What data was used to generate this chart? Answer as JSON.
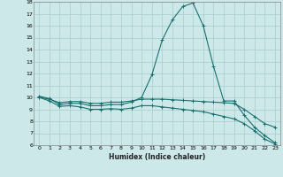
{
  "xlabel": "Humidex (Indice chaleur)",
  "bg_color": "#cce8e8",
  "grid_color": "#a8cccc",
  "line_color": "#1a7070",
  "xlim": [
    -0.5,
    23.5
  ],
  "ylim": [
    6,
    18
  ],
  "yticks": [
    6,
    7,
    8,
    9,
    10,
    11,
    12,
    13,
    14,
    15,
    16,
    17,
    18
  ],
  "xticks": [
    0,
    1,
    2,
    3,
    4,
    5,
    6,
    7,
    8,
    9,
    10,
    11,
    12,
    13,
    14,
    15,
    16,
    17,
    18,
    19,
    20,
    21,
    22,
    23
  ],
  "lines": [
    {
      "x": [
        0,
        1,
        2,
        3,
        4,
        5,
        6,
        7,
        8,
        9,
        10,
        11,
        12,
        13,
        14,
        15,
        16,
        17,
        18,
        19,
        20,
        21,
        22,
        23
      ],
      "y": [
        10.1,
        9.9,
        9.4,
        9.5,
        9.5,
        9.3,
        9.3,
        9.4,
        9.4,
        9.6,
        10.0,
        11.9,
        14.8,
        16.5,
        17.6,
        17.9,
        16.0,
        12.6,
        9.7,
        9.7,
        8.5,
        7.5,
        6.8,
        6.2
      ]
    },
    {
      "x": [
        0,
        1,
        2,
        3,
        4,
        5,
        6,
        7,
        8,
        9,
        10,
        11,
        12,
        13,
        14,
        15,
        16,
        17,
        18,
        19,
        20,
        21,
        22,
        23
      ],
      "y": [
        10.0,
        9.85,
        9.55,
        9.65,
        9.65,
        9.5,
        9.5,
        9.6,
        9.6,
        9.7,
        9.85,
        9.85,
        9.85,
        9.8,
        9.75,
        9.7,
        9.65,
        9.6,
        9.55,
        9.5,
        9.0,
        8.4,
        7.8,
        7.5
      ]
    },
    {
      "x": [
        0,
        1,
        2,
        3,
        4,
        5,
        6,
        7,
        8,
        9,
        10,
        11,
        12,
        13,
        14,
        15,
        16,
        17,
        18,
        19,
        20,
        21,
        22,
        23
      ],
      "y": [
        10.0,
        9.7,
        9.25,
        9.3,
        9.2,
        9.0,
        9.0,
        9.05,
        9.0,
        9.1,
        9.3,
        9.3,
        9.2,
        9.1,
        9.0,
        8.9,
        8.8,
        8.6,
        8.4,
        8.2,
        7.8,
        7.2,
        6.5,
        6.1
      ]
    }
  ]
}
